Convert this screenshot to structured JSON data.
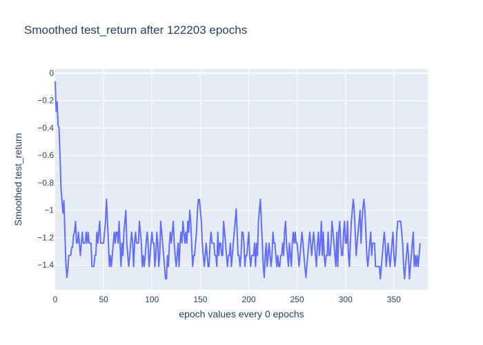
{
  "chart_data": {
    "type": "line",
    "title": "Smoothed test_return after 122203 epochs",
    "xlabel": "epoch values every 0 epochs",
    "ylabel": "Smoothed test_return",
    "xlim": [
      0,
      385
    ],
    "ylim": [
      -1.58,
      0.03
    ],
    "x_ticks": [
      0,
      50,
      100,
      150,
      200,
      250,
      300,
      350
    ],
    "y_ticks": [
      0,
      -0.2,
      -0.4,
      -0.6,
      -0.8,
      -1,
      -1.2,
      -1.4
    ],
    "y_tick_labels": [
      "0",
      "−0.2",
      "−0.4",
      "−0.6",
      "−0.8",
      "−1",
      "−1.2",
      "−1.4"
    ],
    "grid": true,
    "colors": {
      "line": "#636efa",
      "plot_bg": "#e5ecf6",
      "grid": "#ffffff",
      "text": "#2a3f5f"
    },
    "series": [
      {
        "x_start": 0,
        "x_step": 1,
        "values": [
          -0.06,
          -0.28,
          -0.21,
          -0.38,
          -0.4,
          -0.6,
          -0.84,
          -0.93,
          -1.02,
          -0.93,
          -1.16,
          -1.38,
          -1.49,
          -1.44,
          -1.33,
          -1.33,
          -1.33,
          -1.27,
          -1.27,
          -1.18,
          -1.16,
          -1.08,
          -1.24,
          -1.24,
          -1.16,
          -1.24,
          -1.33,
          -1.24,
          -1.16,
          -1.24,
          -1.24,
          -1.24,
          -1.16,
          -1.24,
          -1.16,
          -1.24,
          -1.24,
          -1.24,
          -1.41,
          -1.41,
          -1.41,
          -1.33,
          -1.33,
          -1.16,
          -1.24,
          -1.16,
          -1.08,
          -1.24,
          -1.24,
          -1.24,
          -1.24,
          -1.16,
          -1.08,
          -0.92,
          -1.08,
          -1.24,
          -1.41,
          -1.33,
          -1.41,
          -1.33,
          -1.24,
          -1.16,
          -1.24,
          -1.16,
          -1.16,
          -1.24,
          -1.08,
          -1.24,
          -1.41,
          -1.24,
          -1.33,
          -1.16,
          -1.08,
          -1.0,
          -1.24,
          -1.33,
          -1.41,
          -1.33,
          -1.24,
          -1.16,
          -1.24,
          -1.41,
          -1.24,
          -1.16,
          -1.24,
          -1.24,
          -1.24,
          -1.08,
          -1.16,
          -1.24,
          -1.41,
          -1.33,
          -1.41,
          -1.33,
          -1.24,
          -1.16,
          -1.24,
          -1.41,
          -1.33,
          -1.24,
          -1.16,
          -1.24,
          -1.24,
          -1.41,
          -1.33,
          -1.16,
          -1.24,
          -1.41,
          -1.33,
          -1.08,
          -1.16,
          -1.24,
          -1.33,
          -1.41,
          -1.5,
          -1.5,
          -1.33,
          -1.41,
          -1.24,
          -1.16,
          -1.24,
          -1.16,
          -1.08,
          -1.24,
          -1.33,
          -1.41,
          -1.33,
          -1.24,
          -1.41,
          -1.24,
          -1.16,
          -1.24,
          -1.08,
          -1.16,
          -1.24,
          -1.16,
          -1.24,
          -1.08,
          -1.16,
          -1.0,
          -1.08,
          -1.24,
          -1.41,
          -1.33,
          -1.33,
          -1.24,
          -1.16,
          -1.0,
          -0.92,
          -0.92,
          -1.0,
          -1.08,
          -1.24,
          -1.33,
          -1.41,
          -1.33,
          -1.24,
          -1.33,
          -1.41,
          -1.41,
          -1.24,
          -1.16,
          -1.24,
          -1.24,
          -1.24,
          -1.33,
          -1.33,
          -1.41,
          -1.16,
          -1.33,
          -1.24,
          -1.24,
          -1.33,
          -1.33,
          -1.08,
          -1.16,
          -1.24,
          -1.33,
          -1.41,
          -1.33,
          -1.33,
          -1.24,
          -1.41,
          -1.33,
          -1.24,
          -1.16,
          -1.08,
          -0.99,
          -1.16,
          -1.33,
          -1.33,
          -1.41,
          -1.33,
          -1.16,
          -1.16,
          -1.24,
          -1.41,
          -1.33,
          -1.33,
          -1.24,
          -1.16,
          -1.33,
          -1.41,
          -1.33,
          -1.33,
          -1.33,
          -1.24,
          -1.41,
          -1.24,
          -1.33,
          -1.08,
          -1.0,
          -0.92,
          -1.08,
          -1.24,
          -1.41,
          -1.49,
          -1.33,
          -1.24,
          -1.41,
          -1.33,
          -1.24,
          -1.33,
          -1.41,
          -1.33,
          -1.16,
          -1.24,
          -1.24,
          -1.33,
          -1.41,
          -1.33,
          -1.41,
          -1.41,
          -1.33,
          -1.33,
          -1.24,
          -1.33,
          -1.16,
          -1.08,
          -1.24,
          -1.33,
          -1.41,
          -1.24,
          -1.33,
          -1.41,
          -1.24,
          -1.16,
          -1.24,
          -1.16,
          -1.24,
          -1.24,
          -1.33,
          -1.41,
          -1.33,
          -1.24,
          -1.16,
          -1.24,
          -1.33,
          -1.41,
          -1.49,
          -1.41,
          -1.33,
          -1.24,
          -1.16,
          -1.24,
          -1.33,
          -1.24,
          -1.16,
          -1.24,
          -1.33,
          -1.41,
          -1.24,
          -1.16,
          -1.33,
          -1.24,
          -1.08,
          -1.33,
          -1.16,
          -1.33,
          -1.41,
          -1.33,
          -1.33,
          -1.16,
          -1.33,
          -1.33,
          -1.24,
          -1.08,
          -1.16,
          -1.24,
          -1.33,
          -1.41,
          -1.16,
          -1.41,
          -1.16,
          -1.08,
          -1.24,
          -1.33,
          -1.33,
          -1.16,
          -1.08,
          -1.24,
          -1.24,
          -1.08,
          -1.33,
          -1.41,
          -1.24,
          -1.08,
          -1.0,
          -0.92,
          -1.0,
          -1.16,
          -1.33,
          -1.24,
          -1.16,
          -1.08,
          -1.0,
          -1.24,
          -1.08,
          -0.98,
          -0.92,
          -1.0,
          -1.16,
          -1.33,
          -1.41,
          -1.33,
          -1.24,
          -1.16,
          -1.33,
          -1.24,
          -1.24,
          -1.24,
          -1.41,
          -1.41,
          -1.41,
          -1.41,
          -1.41,
          -1.5,
          -1.41,
          -1.33,
          -1.24,
          -1.16,
          -1.24,
          -1.41,
          -1.33,
          -1.24,
          -1.33,
          -1.41,
          -1.33,
          -1.24,
          -1.16,
          -1.33,
          -1.41,
          -1.33,
          -1.16,
          -1.08,
          -1.08,
          -1.08,
          -1.08,
          -1.16,
          -1.24,
          -1.41,
          -1.5,
          -1.41,
          -1.33,
          -1.24,
          -1.33,
          -1.5,
          -1.41,
          -1.33,
          -1.24,
          -1.16,
          -1.41,
          -1.33,
          -1.41,
          -1.33,
          -1.41,
          -1.33,
          -1.24
        ]
      }
    ]
  }
}
